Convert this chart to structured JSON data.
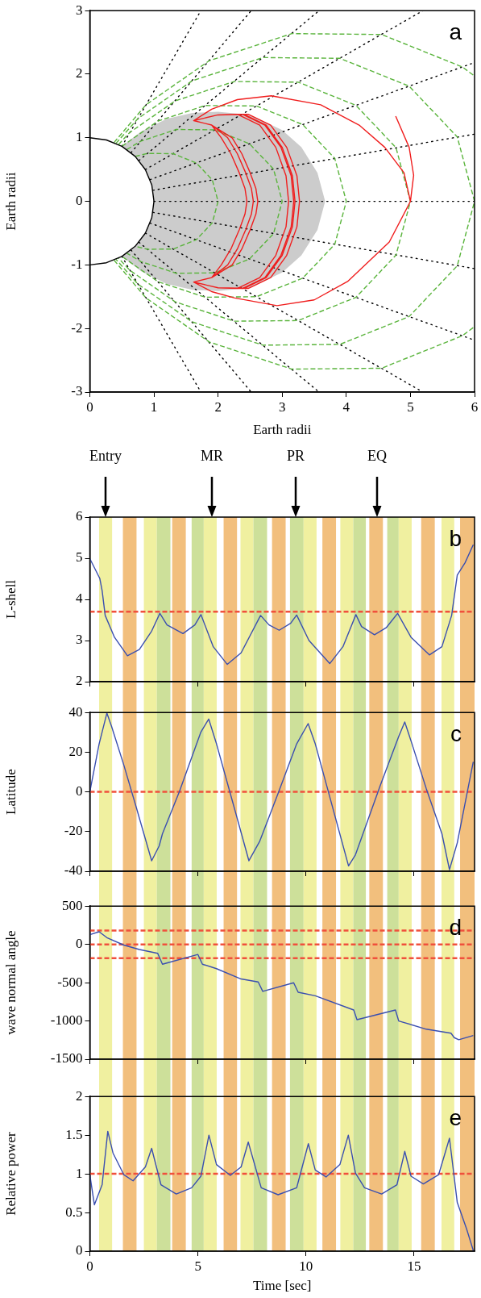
{
  "chart_data": [
    {
      "type": "line",
      "xlabel": "Earth radii",
      "ylabel": "Earth radii",
      "xlim": [
        0,
        6
      ],
      "ylim": [
        -3,
        3
      ],
      "xticks": [
        0,
        1,
        2,
        3,
        4,
        5,
        6
      ],
      "yticks": [
        -3,
        -2,
        -1,
        0,
        1,
        2,
        3
      ],
      "marker": "none",
      "annotations": [
        "a"
      ],
      "series": [
        {
          "type": "area",
          "color": "#cccccc",
          "x": [
            0.5,
            0.8,
            1.2,
            1.6,
            2.0,
            2.5,
            3.0,
            3.3,
            3.55,
            3.67,
            3.55,
            3.3,
            3.0,
            2.5,
            2.0,
            1.6,
            1.2,
            0.8,
            0.5,
            0.707,
            0.866,
            0.966,
            1,
            0.966,
            0.866,
            0.707
          ],
          "values": [
            0.866,
            1.1,
            1.3,
            1.39,
            1.41,
            1.36,
            1.12,
            0.85,
            0.45,
            0,
            -0.45,
            -0.85,
            -1.12,
            -1.36,
            -1.41,
            -1.39,
            -1.3,
            -1.1,
            -0.866,
            -0.707,
            -0.5,
            -0.259,
            0,
            0.259,
            0.5,
            0.707
          ]
        },
        {
          "color": "#000000",
          "line_style": "dotted",
          "x": [
            1,
            6
          ],
          "values": [
            0,
            0
          ]
        },
        {
          "color": "#000000",
          "line_style": "dotted",
          "x": [
            0.985,
            6
          ],
          "values": [
            0.174,
            1.058
          ]
        },
        {
          "color": "#000000",
          "line_style": "dotted",
          "x": [
            0.985,
            6
          ],
          "values": [
            -0.174,
            -1.058
          ]
        },
        {
          "color": "#000000",
          "line_style": "dotted",
          "x": [
            0.94,
            6
          ],
          "values": [
            0.342,
            2.184
          ]
        },
        {
          "color": "#000000",
          "line_style": "dotted",
          "x": [
            0.94,
            6
          ],
          "values": [
            -0.342,
            -2.184
          ]
        },
        {
          "color": "#000000",
          "line_style": "dotted",
          "x": [
            0.866,
            5.196
          ],
          "values": [
            0.5,
            3
          ]
        },
        {
          "color": "#000000",
          "line_style": "dotted",
          "x": [
            0.866,
            5.196
          ],
          "values": [
            -0.5,
            -3
          ]
        },
        {
          "color": "#000000",
          "line_style": "dotted",
          "x": [
            0.766,
            3.575
          ],
          "values": [
            0.643,
            3
          ]
        },
        {
          "color": "#000000",
          "line_style": "dotted",
          "x": [
            0.766,
            3.575
          ],
          "values": [
            -0.643,
            -3
          ]
        },
        {
          "color": "#000000",
          "line_style": "dotted",
          "x": [
            0.643,
            2.517
          ],
          "values": [
            0.766,
            3
          ]
        },
        {
          "color": "#000000",
          "line_style": "dotted",
          "x": [
            0.643,
            2.517
          ],
          "values": [
            -0.766,
            -3
          ]
        },
        {
          "color": "#000000",
          "line_style": "dotted",
          "x": [
            0.5,
            1.732
          ],
          "values": [
            0.866,
            3
          ]
        },
        {
          "color": "#000000",
          "line_style": "dotted",
          "x": [
            0.5,
            1.732
          ],
          "values": [
            -0.866,
            -3
          ]
        },
        {
          "color": "#5ab43c",
          "line_style": "dashed",
          "x": [
            0.707,
            0.9,
            1.3,
            1.66,
            1.91,
            2,
            1.91,
            1.66,
            1.3,
            0.9,
            0.707
          ],
          "values": [
            0.707,
            0.754,
            0.75,
            0.604,
            0.338,
            0,
            -0.338,
            -0.604,
            -0.75,
            -0.754,
            -0.707
          ]
        },
        {
          "color": "#5ab43c",
          "line_style": "dashed",
          "x": [
            0.577,
            0.798,
            1.35,
            1.95,
            2.49,
            2.865,
            3,
            2.865,
            2.49,
            1.95,
            1.35,
            0.798,
            0.577
          ],
          "values": [
            0.816,
            0.948,
            1.131,
            1.125,
            0.906,
            0.507,
            0,
            -0.507,
            -0.906,
            -1.125,
            -1.131,
            -0.948,
            -0.816
          ]
        },
        {
          "color": "#5ab43c",
          "line_style": "dashed",
          "x": [
            0.5,
            1.064,
            1.8,
            2.6,
            3.32,
            3.82,
            4,
            3.82,
            3.32,
            2.6,
            1.8,
            1.064,
            0.5
          ],
          "values": [
            0.866,
            1.264,
            1.508,
            1.5,
            1.208,
            0.676,
            0,
            -0.676,
            -1.208,
            -1.5,
            -1.508,
            -1.264,
            -0.866
          ]
        },
        {
          "color": "#5ab43c",
          "line_style": "dashed",
          "x": [
            0.447,
            0.625,
            1.33,
            2.25,
            3.25,
            4.15,
            4.775,
            5,
            4.775,
            4.15,
            3.25,
            2.25,
            1.33,
            0.625,
            0.447
          ],
          "values": [
            0.894,
            1.085,
            1.58,
            1.885,
            1.875,
            1.51,
            0.845,
            0,
            -0.845,
            -1.51,
            -1.875,
            -1.885,
            -1.58,
            -1.085,
            -0.894
          ]
        },
        {
          "color": "#5ab43c",
          "line_style": "dashed",
          "x": [
            0.408,
            0.75,
            1.596,
            2.7,
            3.9,
            4.98,
            5.73,
            6,
            5.73,
            4.98,
            3.9,
            2.7,
            1.596,
            0.75,
            0.408
          ],
          "values": [
            0.913,
            1.302,
            1.896,
            2.262,
            2.25,
            1.812,
            1.014,
            0,
            -1.014,
            -1.812,
            -2.25,
            -2.262,
            -1.896,
            -1.302,
            -0.913
          ]
        },
        {
          "color": "#5ab43c",
          "line_style": "dashed",
          "x": [
            0.378,
            0.875,
            1.862,
            3.15,
            4.55,
            5.81,
            6
          ],
          "values": [
            0.926,
            1.519,
            2.212,
            2.639,
            2.625,
            2.114,
            1.971
          ]
        },
        {
          "color": "#5ab43c",
          "line_style": "dashed",
          "x": [
            0.378,
            0.875,
            1.862,
            3.15,
            4.55,
            5.81,
            6
          ],
          "values": [
            -0.926,
            -1.519,
            -2.212,
            -2.639,
            -2.625,
            -2.114,
            -1.971
          ]
        },
        {
          "color": "#f01e1e",
          "line_style": "solid",
          "x": [
            5.0,
            4.9,
            4.6,
            4.2,
            3.6,
            2.83,
            2.3,
            1.9,
            1.62,
            2.0,
            2.4,
            2.75,
            3.0,
            3.16,
            3.2,
            3.16,
            3.0,
            2.75,
            2.4,
            2.0,
            1.62,
            1.9,
            2.05,
            2.2,
            2.33,
            2.42,
            2.45,
            2.42,
            2.33,
            2.2,
            2.05,
            1.9,
            1.62,
            2.0,
            2.47,
            2.82,
            3.07,
            3.23,
            3.27,
            3.23,
            3.07,
            2.82,
            2.47,
            2.0,
            1.62,
            1.9,
            2.22,
            2.37,
            2.5,
            2.59,
            2.62,
            2.59,
            2.5,
            2.37,
            2.22,
            1.9,
            1.62,
            2.0,
            2.3,
            2.65,
            2.9,
            3.06,
            3.1,
            3.06,
            2.9,
            2.65,
            2.3,
            2.0,
            1.62,
            1.9,
            2.15,
            2.3,
            2.43,
            2.52,
            2.55,
            2.52,
            2.43,
            2.3,
            2.15,
            1.9,
            1.62,
            2.0,
            2.38,
            2.73,
            2.98,
            3.14,
            3.18,
            3.14,
            2.98,
            2.73,
            2.38,
            2.0,
            1.62,
            1.9,
            2.26,
            2.92,
            3.5,
            4.02,
            4.67,
            5.0,
            5.05,
            4.98,
            4.77
          ],
          "values": [
            0,
            0.45,
            0.85,
            1.2,
            1.52,
            1.66,
            1.6,
            1.45,
            1.27,
            1.36,
            1.37,
            1.2,
            0.85,
            0.4,
            0,
            -0.4,
            -0.85,
            -1.2,
            -1.37,
            -1.36,
            -1.27,
            -1.2,
            -1.0,
            -0.75,
            -0.45,
            -0.2,
            0,
            0.2,
            0.45,
            0.75,
            1.0,
            1.2,
            1.27,
            1.36,
            1.37,
            1.2,
            0.85,
            0.4,
            0,
            -0.4,
            -0.85,
            -1.2,
            -1.37,
            -1.36,
            -1.27,
            -1.2,
            -1.0,
            -0.75,
            -0.45,
            -0.2,
            0,
            0.2,
            0.45,
            0.75,
            1.0,
            1.2,
            1.27,
            1.36,
            1.37,
            1.2,
            0.85,
            0.4,
            0,
            -0.4,
            -0.85,
            -1.2,
            -1.37,
            -1.36,
            -1.27,
            -1.2,
            -1.0,
            -0.75,
            -0.45,
            -0.2,
            0,
            0.2,
            0.45,
            0.75,
            1.0,
            1.2,
            1.27,
            1.36,
            1.37,
            1.2,
            0.85,
            0.4,
            0,
            -0.4,
            -0.85,
            -1.2,
            -1.37,
            -1.36,
            -1.27,
            -1.42,
            -1.52,
            -1.64,
            -1.55,
            -1.26,
            -0.64,
            0,
            0.41,
            0.85,
            1.34
          ]
        },
        {
          "color": "#000000",
          "line_style": "solid",
          "x": [
            0,
            0.259,
            0.5,
            0.707,
            0.866,
            0.966,
            1,
            0.966,
            0.866,
            0.707,
            0.5,
            0.259,
            0
          ],
          "values": [
            1,
            0.966,
            0.866,
            0.707,
            0.5,
            0.259,
            0,
            -0.259,
            -0.5,
            -0.707,
            -0.866,
            -0.966,
            -1
          ]
        }
      ]
    },
    {
      "type": "line",
      "ylabel": "L-shell",
      "xlim": [
        0,
        17.8
      ],
      "ylim": [
        2,
        6
      ],
      "xticks": [
        0,
        5,
        10,
        15
      ],
      "yticks": [
        2,
        3,
        4,
        5,
        6
      ],
      "tick_labels": "y",
      "marker": "none",
      "annotations": [
        "b",
        "Entry",
        "MR",
        "PR",
        "EQ"
      ],
      "ref_lines": [
        {
          "axis": "y",
          "value": 3.7,
          "color": "#f0503c",
          "line_style": "dashed"
        }
      ],
      "bands": [
        {
          "axis": "x",
          "from": 0.43,
          "to": 1.03,
          "color": "#f0f0a0"
        },
        {
          "axis": "x",
          "from": 1.53,
          "to": 2.16,
          "color": "#f2bf7d"
        },
        {
          "axis": "x",
          "from": 2.5,
          "to": 3.1,
          "color": "#f0f0a0"
        },
        {
          "axis": "x",
          "from": 3.1,
          "to": 3.73,
          "color": "#cde09a"
        },
        {
          "axis": "x",
          "from": 3.81,
          "to": 4.44,
          "color": "#f2bf7d"
        },
        {
          "axis": "x",
          "from": 4.71,
          "to": 5.27,
          "color": "#cde09a"
        },
        {
          "axis": "x",
          "from": 5.27,
          "to": 5.87,
          "color": "#f0f0a0"
        },
        {
          "axis": "x",
          "from": 6.19,
          "to": 6.81,
          "color": "#f2bf7d"
        },
        {
          "axis": "x",
          "from": 6.97,
          "to": 7.57,
          "color": "#f0f0a0"
        },
        {
          "axis": "x",
          "from": 7.57,
          "to": 8.2,
          "color": "#cde09a"
        },
        {
          "axis": "x",
          "from": 8.43,
          "to": 9.06,
          "color": "#f2bf7d"
        },
        {
          "axis": "x",
          "from": 9.26,
          "to": 9.89,
          "color": "#cde09a"
        },
        {
          "axis": "x",
          "from": 9.89,
          "to": 10.49,
          "color": "#f0f0a0"
        },
        {
          "axis": "x",
          "from": 10.76,
          "to": 11.39,
          "color": "#f2bf7d"
        },
        {
          "axis": "x",
          "from": 11.59,
          "to": 12.19,
          "color": "#f0f0a0"
        },
        {
          "axis": "x",
          "from": 12.19,
          "to": 12.77,
          "color": "#cde09a"
        },
        {
          "axis": "x",
          "from": 12.93,
          "to": 13.56,
          "color": "#f2bf7d"
        },
        {
          "axis": "x",
          "from": 13.76,
          "to": 14.29,
          "color": "#cde09a"
        },
        {
          "axis": "x",
          "from": 14.29,
          "to": 14.89,
          "color": "#f0f0a0"
        },
        {
          "axis": "x",
          "from": 15.33,
          "to": 15.96,
          "color": "#f2bf7d"
        },
        {
          "axis": "x",
          "from": 16.27,
          "to": 16.86,
          "color": "#f0f0a0"
        },
        {
          "axis": "x",
          "from": 17.13,
          "to": 17.8,
          "color": "#f2bf7d"
        }
      ],
      "series": [
        {
          "color": "#3a4fb0",
          "x": [
            0,
            0.46,
            0.57,
            0.71,
            1.14,
            1.74,
            2.29,
            2.86,
            3.24,
            3.57,
            4.31,
            4.86,
            5.14,
            5.71,
            6.36,
            7.0,
            7.9,
            8.29,
            8.76,
            9.29,
            9.57,
            10.14,
            11.1,
            11.71,
            12.31,
            12.57,
            13.17,
            13.71,
            14.24,
            14.86,
            15.71,
            16.29,
            16.74,
            17.0,
            17.36,
            17.74
          ],
          "values": [
            4.99,
            4.51,
            4.21,
            3.61,
            3.08,
            2.63,
            2.78,
            3.23,
            3.66,
            3.38,
            3.17,
            3.38,
            3.63,
            2.85,
            2.42,
            2.7,
            3.61,
            3.38,
            3.25,
            3.42,
            3.62,
            3.0,
            2.44,
            2.85,
            3.63,
            3.34,
            3.14,
            3.31,
            3.66,
            3.08,
            2.65,
            2.85,
            3.61,
            4.59,
            4.89,
            5.33
          ]
        }
      ]
    },
    {
      "type": "line",
      "ylabel": "Latitude",
      "xlim": [
        0,
        17.8
      ],
      "ylim": [
        -40,
        40
      ],
      "xticks": [
        0,
        5,
        10,
        15
      ],
      "yticks": [
        -40,
        -20,
        0,
        20,
        40
      ],
      "tick_labels": "y",
      "marker": "none",
      "annotations": [
        "c"
      ],
      "ref_lines": [
        {
          "axis": "y",
          "value": 0,
          "color": "#f0503c",
          "line_style": "dashed"
        }
      ],
      "bands": [
        {
          "axis": "x",
          "from": 0.43,
          "to": 1.03,
          "color": "#f0f0a0"
        },
        {
          "axis": "x",
          "from": 1.53,
          "to": 2.16,
          "color": "#f2bf7d"
        },
        {
          "axis": "x",
          "from": 2.5,
          "to": 3.1,
          "color": "#f0f0a0"
        },
        {
          "axis": "x",
          "from": 3.1,
          "to": 3.73,
          "color": "#cde09a"
        },
        {
          "axis": "x",
          "from": 3.81,
          "to": 4.44,
          "color": "#f2bf7d"
        },
        {
          "axis": "x",
          "from": 4.71,
          "to": 5.27,
          "color": "#cde09a"
        },
        {
          "axis": "x",
          "from": 5.27,
          "to": 5.87,
          "color": "#f0f0a0"
        },
        {
          "axis": "x",
          "from": 6.19,
          "to": 6.81,
          "color": "#f2bf7d"
        },
        {
          "axis": "x",
          "from": 6.97,
          "to": 7.57,
          "color": "#f0f0a0"
        },
        {
          "axis": "x",
          "from": 7.57,
          "to": 8.2,
          "color": "#cde09a"
        },
        {
          "axis": "x",
          "from": 8.43,
          "to": 9.06,
          "color": "#f2bf7d"
        },
        {
          "axis": "x",
          "from": 9.26,
          "to": 9.89,
          "color": "#cde09a"
        },
        {
          "axis": "x",
          "from": 9.89,
          "to": 10.49,
          "color": "#f0f0a0"
        },
        {
          "axis": "x",
          "from": 10.76,
          "to": 11.39,
          "color": "#f2bf7d"
        },
        {
          "axis": "x",
          "from": 11.59,
          "to": 12.19,
          "color": "#f0f0a0"
        },
        {
          "axis": "x",
          "from": 12.19,
          "to": 12.77,
          "color": "#cde09a"
        },
        {
          "axis": "x",
          "from": 12.93,
          "to": 13.56,
          "color": "#f2bf7d"
        },
        {
          "axis": "x",
          "from": 13.76,
          "to": 14.29,
          "color": "#cde09a"
        },
        {
          "axis": "x",
          "from": 14.29,
          "to": 14.89,
          "color": "#f0f0a0"
        },
        {
          "axis": "x",
          "from": 15.33,
          "to": 15.96,
          "color": "#f2bf7d"
        },
        {
          "axis": "x",
          "from": 16.27,
          "to": 16.86,
          "color": "#f0f0a0"
        },
        {
          "axis": "x",
          "from": 17.13,
          "to": 17.8,
          "color": "#f2bf7d"
        }
      ],
      "series": [
        {
          "color": "#3a4fb0",
          "x": [
            0,
            0.43,
            0.79,
            1.0,
            1.57,
            2.14,
            2.86,
            3.21,
            3.36,
            4.14,
            5.14,
            5.5,
            5.86,
            6.71,
            7.36,
            7.86,
            8.71,
            9.57,
            10.1,
            10.43,
            11.0,
            11.97,
            12.29,
            13.43,
            14.29,
            14.57,
            14.86,
            15.57,
            16.29,
            16.64,
            17.0,
            17.74
          ],
          "values": [
            0,
            24.2,
            39.7,
            33.2,
            13.6,
            -7.5,
            -34.7,
            -27.2,
            -21.1,
            0,
            30.2,
            36.7,
            24.2,
            -9.1,
            -34.7,
            -24.9,
            -0.8,
            24.2,
            34.4,
            24.2,
            1.5,
            -37.3,
            -31.7,
            3.0,
            27.9,
            35.2,
            25.7,
            1.5,
            -21.1,
            -39.2,
            -25.7,
            15.1
          ]
        }
      ]
    },
    {
      "type": "line",
      "ylabel": "wave normal angle",
      "xlim": [
        0,
        17.8
      ],
      "ylim": [
        -1500,
        500
      ],
      "xticks": [
        0,
        5,
        10,
        15
      ],
      "yticks": [
        -1500,
        -1000,
        -500,
        0,
        500
      ],
      "tick_labels": "y",
      "marker": "none",
      "annotations": [
        "d"
      ],
      "ref_lines": [
        {
          "axis": "y",
          "value": 180,
          "color": "#f0503c",
          "line_style": "dashed"
        },
        {
          "axis": "y",
          "value": 0,
          "color": "#f0503c",
          "line_style": "dashed"
        },
        {
          "axis": "y",
          "value": -180,
          "color": "#f0503c",
          "line_style": "dashed"
        }
      ],
      "bands": [
        {
          "axis": "x",
          "from": 0.43,
          "to": 1.03,
          "color": "#f0f0a0"
        },
        {
          "axis": "x",
          "from": 1.53,
          "to": 2.16,
          "color": "#f2bf7d"
        },
        {
          "axis": "x",
          "from": 2.5,
          "to": 3.1,
          "color": "#f0f0a0"
        },
        {
          "axis": "x",
          "from": 3.1,
          "to": 3.73,
          "color": "#cde09a"
        },
        {
          "axis": "x",
          "from": 3.81,
          "to": 4.44,
          "color": "#f2bf7d"
        },
        {
          "axis": "x",
          "from": 4.71,
          "to": 5.27,
          "color": "#cde09a"
        },
        {
          "axis": "x",
          "from": 5.27,
          "to": 5.87,
          "color": "#f0f0a0"
        },
        {
          "axis": "x",
          "from": 6.19,
          "to": 6.81,
          "color": "#f2bf7d"
        },
        {
          "axis": "x",
          "from": 6.97,
          "to": 7.57,
          "color": "#f0f0a0"
        },
        {
          "axis": "x",
          "from": 7.57,
          "to": 8.2,
          "color": "#cde09a"
        },
        {
          "axis": "x",
          "from": 8.43,
          "to": 9.06,
          "color": "#f2bf7d"
        },
        {
          "axis": "x",
          "from": 9.26,
          "to": 9.89,
          "color": "#cde09a"
        },
        {
          "axis": "x",
          "from": 9.89,
          "to": 10.49,
          "color": "#f0f0a0"
        },
        {
          "axis": "x",
          "from": 10.76,
          "to": 11.39,
          "color": "#f2bf7d"
        },
        {
          "axis": "x",
          "from": 11.59,
          "to": 12.19,
          "color": "#f0f0a0"
        },
        {
          "axis": "x",
          "from": 12.19,
          "to": 12.77,
          "color": "#cde09a"
        },
        {
          "axis": "x",
          "from": 12.93,
          "to": 13.56,
          "color": "#f2bf7d"
        },
        {
          "axis": "x",
          "from": 13.76,
          "to": 14.29,
          "color": "#cde09a"
        },
        {
          "axis": "x",
          "from": 14.29,
          "to": 14.89,
          "color": "#f0f0a0"
        },
        {
          "axis": "x",
          "from": 15.33,
          "to": 15.96,
          "color": "#f2bf7d"
        },
        {
          "axis": "x",
          "from": 16.27,
          "to": 16.86,
          "color": "#f0f0a0"
        },
        {
          "axis": "x",
          "from": 17.13,
          "to": 17.8,
          "color": "#f2bf7d"
        }
      ],
      "series": [
        {
          "color": "#3a4fb0",
          "x": [
            0,
            0.43,
            0.79,
            1.57,
            2.29,
            3.14,
            3.36,
            5.0,
            5.21,
            5.86,
            7.0,
            7.79,
            8.0,
            9.43,
            9.64,
            10.43,
            12.21,
            12.36,
            14.14,
            14.29,
            15.57,
            16.71,
            16.86,
            17.07,
            17.74
          ],
          "values": [
            126,
            165,
            88,
            -9,
            -67,
            -117,
            -259,
            -132,
            -259,
            -317,
            -452,
            -491,
            -614,
            -502,
            -626,
            -672,
            -857,
            -984,
            -857,
            -1000,
            -1108,
            -1160,
            -1218,
            -1245,
            -1191
          ]
        }
      ]
    },
    {
      "type": "line",
      "xlabel": "Time [sec]",
      "ylabel": "Relative power",
      "xlim": [
        0,
        17.8
      ],
      "ylim": [
        0,
        2
      ],
      "xticks": [
        0,
        5,
        10,
        15
      ],
      "yticks": [
        0,
        0.5,
        1,
        1.5,
        2
      ],
      "marker": "none",
      "annotations": [
        "e"
      ],
      "ref_lines": [
        {
          "axis": "y",
          "value": 1,
          "color": "#f0503c",
          "line_style": "dashed"
        }
      ],
      "bands": [
        {
          "axis": "x",
          "from": 0.43,
          "to": 1.03,
          "color": "#f0f0a0"
        },
        {
          "axis": "x",
          "from": 1.53,
          "to": 2.16,
          "color": "#f2bf7d"
        },
        {
          "axis": "x",
          "from": 2.5,
          "to": 3.1,
          "color": "#f0f0a0"
        },
        {
          "axis": "x",
          "from": 3.1,
          "to": 3.73,
          "color": "#cde09a"
        },
        {
          "axis": "x",
          "from": 3.81,
          "to": 4.44,
          "color": "#f2bf7d"
        },
        {
          "axis": "x",
          "from": 4.71,
          "to": 5.27,
          "color": "#cde09a"
        },
        {
          "axis": "x",
          "from": 5.27,
          "to": 5.87,
          "color": "#f0f0a0"
        },
        {
          "axis": "x",
          "from": 6.19,
          "to": 6.81,
          "color": "#f2bf7d"
        },
        {
          "axis": "x",
          "from": 6.97,
          "to": 7.57,
          "color": "#f0f0a0"
        },
        {
          "axis": "x",
          "from": 7.57,
          "to": 8.2,
          "color": "#cde09a"
        },
        {
          "axis": "x",
          "from": 8.43,
          "to": 9.06,
          "color": "#f2bf7d"
        },
        {
          "axis": "x",
          "from": 9.26,
          "to": 9.89,
          "color": "#cde09a"
        },
        {
          "axis": "x",
          "from": 9.89,
          "to": 10.49,
          "color": "#f0f0a0"
        },
        {
          "axis": "x",
          "from": 10.76,
          "to": 11.39,
          "color": "#f2bf7d"
        },
        {
          "axis": "x",
          "from": 11.59,
          "to": 12.19,
          "color": "#f0f0a0"
        },
        {
          "axis": "x",
          "from": 12.19,
          "to": 12.77,
          "color": "#cde09a"
        },
        {
          "axis": "x",
          "from": 12.93,
          "to": 13.56,
          "color": "#f2bf7d"
        },
        {
          "axis": "x",
          "from": 13.76,
          "to": 14.29,
          "color": "#cde09a"
        },
        {
          "axis": "x",
          "from": 14.29,
          "to": 14.89,
          "color": "#f0f0a0"
        },
        {
          "axis": "x",
          "from": 15.33,
          "to": 15.96,
          "color": "#f2bf7d"
        },
        {
          "axis": "x",
          "from": 16.27,
          "to": 16.86,
          "color": "#f0f0a0"
        },
        {
          "axis": "x",
          "from": 17.13,
          "to": 17.8,
          "color": "#f2bf7d"
        }
      ],
      "series": [
        {
          "color": "#3a4fb0",
          "x": [
            0,
            0.21,
            0.57,
            0.83,
            1.07,
            1.57,
            2.0,
            2.57,
            2.86,
            3.29,
            4.0,
            4.71,
            5.14,
            5.51,
            5.86,
            6.5,
            7.0,
            7.33,
            7.93,
            8.71,
            9.57,
            10.11,
            10.43,
            10.93,
            11.57,
            11.96,
            12.29,
            12.71,
            13.5,
            14.21,
            14.57,
            14.86,
            15.43,
            16.14,
            16.64,
            17.0,
            17.43,
            17.74
          ],
          "values": [
            0.99,
            0.6,
            0.86,
            1.55,
            1.27,
            0.99,
            0.91,
            1.09,
            1.33,
            0.86,
            0.74,
            0.82,
            0.97,
            1.5,
            1.12,
            0.98,
            1.09,
            1.41,
            0.82,
            0.73,
            0.82,
            1.39,
            1.05,
            0.96,
            1.12,
            1.5,
            1.01,
            0.82,
            0.74,
            0.86,
            1.29,
            0.97,
            0.87,
            0.99,
            1.46,
            0.63,
            0.29,
            0.01
          ]
        }
      ]
    }
  ]
}
